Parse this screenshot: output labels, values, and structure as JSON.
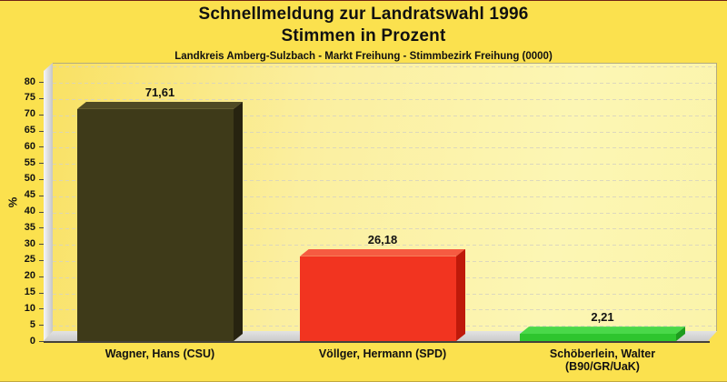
{
  "header": {
    "title_line1": "Schnellmeldung zur Landratswahl 1996",
    "title_line2": "Stimmen in Prozent",
    "subtitle": "Landkreis Amberg-Sulzbach - Markt Freihung - Stimmbezirk Freihung (0000)"
  },
  "chart_data": {
    "type": "bar",
    "title": "Schnellmeldung zur Landratswahl 1996 — Stimmen in Prozent",
    "subtitle": "Landkreis Amberg-Sulzbach - Markt Freihung - Stimmbezirk Freihung (0000)",
    "categories": [
      "Wagner, Hans (CSU)",
      "Völlger, Hermann (SPD)",
      "Schöberlein, Walter\n(B90/GR/UaK)"
    ],
    "values": [
      71.61,
      26.18,
      2.21
    ],
    "value_labels": [
      "71,61",
      "26,18",
      "2,21"
    ],
    "xlabel": "",
    "ylabel": "%",
    "ylim": [
      0,
      85.9
    ],
    "yticks": [
      0,
      5,
      10,
      15,
      20,
      25,
      30,
      35,
      40,
      45,
      50,
      55,
      60,
      65,
      70,
      75,
      80
    ],
    "grid": "dashed-horizontal",
    "legend_position": "none",
    "style": "3d-bars",
    "bar_colors": [
      {
        "party": "CSU",
        "front": "#3e3a19",
        "top": "#4f4a24",
        "side": "#272310"
      },
      {
        "party": "SPD",
        "front": "#f23420",
        "top": "#f65b41",
        "side": "#bf1a0a"
      },
      {
        "party": "B90/GR/UaK",
        "front": "#2ec52e",
        "top": "#49d849",
        "side": "#1e9c1e"
      }
    ],
    "background_color": "#fbe14e",
    "wall_color_gradient": [
      "#f9e164",
      "#fcf6b4"
    ],
    "floor_color": "#d5d5d5"
  }
}
